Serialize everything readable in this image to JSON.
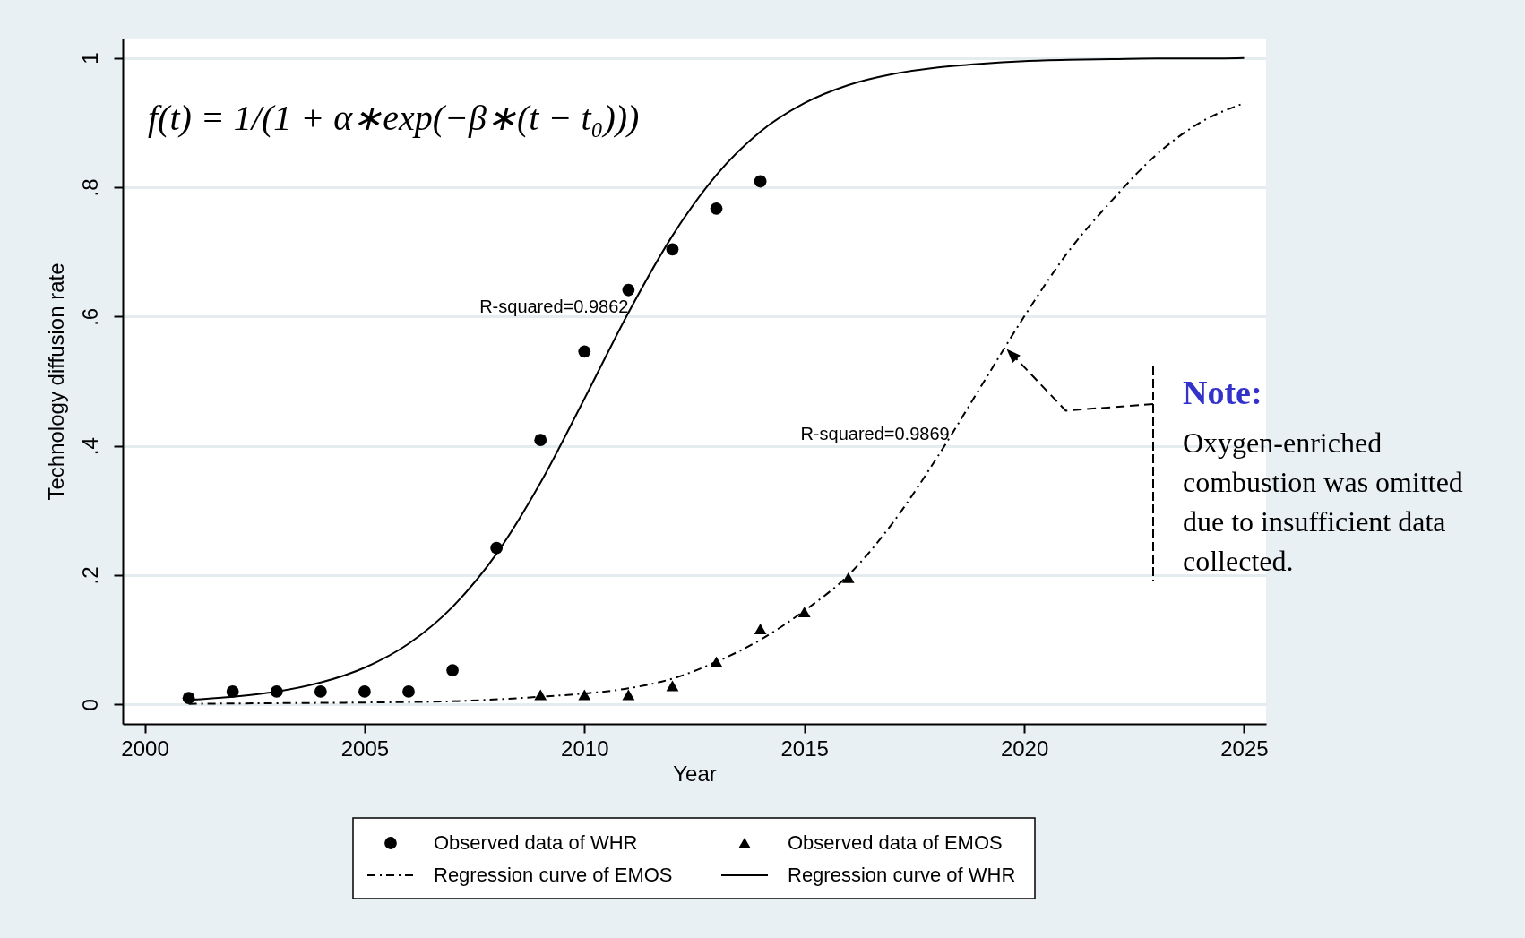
{
  "chart_data": {
    "type": "scatter",
    "xlabel": "Year",
    "ylabel": "Technology diffusion rate",
    "xlim": [
      1999.5,
      2025.5
    ],
    "xticks": [
      2000,
      2005,
      2010,
      2015,
      2020,
      2025
    ],
    "ylim": [
      -0.03,
      1.03
    ],
    "yticks": [
      {
        "value": 0,
        "label": "0"
      },
      {
        "value": 0.2,
        "label": ".2"
      },
      {
        "value": 0.4,
        "label": ".4"
      },
      {
        "value": 0.6,
        "label": ".6"
      },
      {
        "value": 0.8,
        "label": ".8"
      },
      {
        "value": 1,
        "label": "1"
      }
    ],
    "grid": "y",
    "legend": "bottom",
    "series": [
      {
        "name": "Observed data of WHR",
        "marker": "circle",
        "color": "#000000",
        "x": [
          2001,
          2002,
          2003,
          2004,
          2005,
          2006,
          2007,
          2008,
          2009,
          2010,
          2011,
          2012,
          2013,
          2014
        ],
        "values": [
          0.01,
          0.02,
          0.02,
          0.02,
          0.02,
          0.02,
          0.053,
          0.242,
          0.409,
          0.546,
          0.641,
          0.704,
          0.767,
          0.809
        ]
      },
      {
        "name": "Observed data of EMOS",
        "marker": "triangle",
        "color": "#000000",
        "x": [
          2009,
          2010,
          2011,
          2012,
          2013,
          2014,
          2015,
          2016
        ],
        "values": [
          0.015,
          0.015,
          0.015,
          0.029,
          0.066,
          0.117,
          0.143,
          0.196
        ]
      },
      {
        "name": "Regression curve of EMOS",
        "type": "line",
        "line_style": "dashed",
        "color": "#000000",
        "x": [
          2001,
          2003,
          2005,
          2007,
          2009,
          2010,
          2011,
          2012,
          2013,
          2014,
          2015,
          2016,
          2017,
          2018,
          2019,
          2020,
          2021,
          2022,
          2023,
          2024,
          2025
        ],
        "values": [
          0.001,
          0.002,
          0.003,
          0.005,
          0.012,
          0.017,
          0.025,
          0.04,
          0.066,
          0.1,
          0.145,
          0.2,
          0.28,
          0.38,
          0.49,
          0.6,
          0.7,
          0.78,
          0.85,
          0.9,
          0.93
        ]
      },
      {
        "name": "Regression curve of WHR",
        "type": "line",
        "line_style": "solid",
        "color": "#000000",
        "x": [
          2001,
          2002,
          2003,
          2004,
          2005,
          2006,
          2007,
          2008,
          2009,
          2010,
          2011,
          2012,
          2013,
          2014,
          2015,
          2016,
          2017,
          2018,
          2019,
          2020,
          2021,
          2022,
          2023,
          2024,
          2025
        ],
        "values": [
          0.007,
          0.012,
          0.02,
          0.034,
          0.057,
          0.094,
          0.151,
          0.233,
          0.343,
          0.473,
          0.606,
          0.725,
          0.819,
          0.886,
          0.93,
          0.958,
          0.975,
          0.985,
          0.991,
          0.995,
          0.997,
          0.998,
          0.999,
          0.999,
          1
        ]
      }
    ],
    "annotations": [
      "f(t) = 1/(1 + α∗exp(−β∗(t − t₀)))",
      {
        "text": "R-squared=0.9862",
        "x": 2011,
        "y": 0.615
      },
      {
        "text": "R-squared=0.9869",
        "x": 2018.3,
        "y": 0.418
      },
      "Note:",
      "Oxygen-enriched combustion was omitted due to insufficient data collected."
    ]
  }
}
